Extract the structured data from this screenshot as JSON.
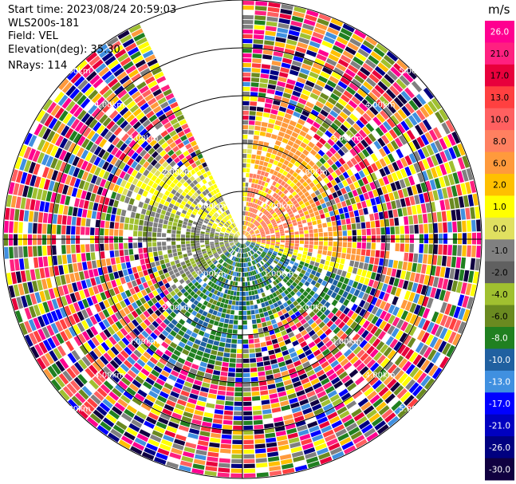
{
  "header": {
    "start_time": "Start time: 2023/08/24 20:59:03",
    "site": "WLS200s-181",
    "field": "Field: VEL",
    "elevation": "Elevation(deg): 35.30",
    "nrays": "NRays: 114"
  },
  "chart_data": {
    "type": "ppi-radial",
    "field": "VEL",
    "nrays": 114,
    "max_range_km": 5.0,
    "range_rings_km": [
      1.0,
      2.0,
      3.0,
      4.0,
      5.0
    ],
    "ring_labels": [
      "1.00km",
      "2.00km",
      "3.00km",
      "4.00km",
      "5.00km"
    ],
    "missing_sector_deg": [
      -25,
      0
    ],
    "colorbar": {
      "unit": "m/s",
      "ticks": [
        "26.0",
        "21.0",
        "17.0",
        "13.0",
        "10.0",
        "8.0",
        "6.0",
        "2.0",
        "1.0",
        "0.0",
        "-1.0",
        "-2.0",
        "-4.0",
        "-6.0",
        "-8.0",
        "-10.0",
        "-13.0",
        "-17.0",
        "-21.0",
        "-26.0",
        "-30.0"
      ],
      "colors": [
        "#ff0090",
        "#ff2080",
        "#e8003c",
        "#ff4040",
        "#ff6060",
        "#ff8060",
        "#ff9a3c",
        "#ffc000",
        "#ffff00",
        "#e0e060",
        "#808080",
        "#606060",
        "#a0c030",
        "#6a8a20",
        "#208020",
        "#2060a0",
        "#4090e0",
        "#0000ff",
        "#0000c0",
        "#000080",
        "#100040"
      ]
    }
  }
}
